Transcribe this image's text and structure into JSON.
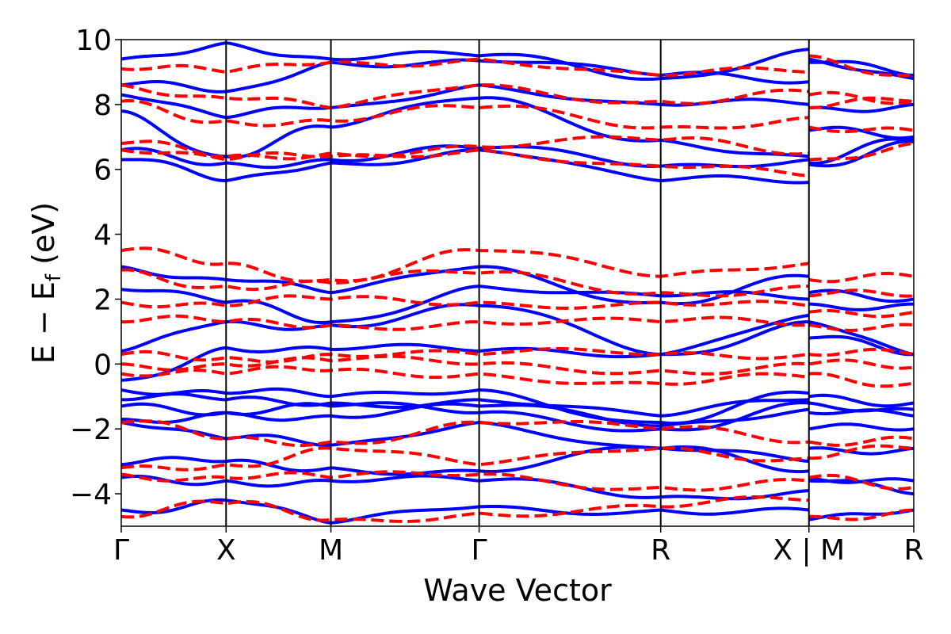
{
  "chart_data": {
    "type": "line",
    "xlabel": "Wave Vector",
    "ylabel_parts": {
      "main": "E − E",
      "sub": "f",
      "unit": " (eV)"
    },
    "ylim": [
      -5,
      10
    ],
    "yticks": [
      {
        "value": 10,
        "label": "10"
      },
      {
        "value": 8,
        "label": "8"
      },
      {
        "value": 6,
        "label": "6"
      },
      {
        "value": 4,
        "label": "4"
      },
      {
        "value": 2,
        "label": "2"
      },
      {
        "value": 0,
        "label": "0"
      },
      {
        "value": -2,
        "label": "−2"
      },
      {
        "value": -4,
        "label": "−4"
      }
    ],
    "xlim": [
      0,
      7.5
    ],
    "segments": [
      [
        0,
        6.3
      ],
      [
        6.35,
        7.5
      ]
    ],
    "kpoints": [
      {
        "x": 0,
        "label": "Γ"
      },
      {
        "x": 1,
        "label": "X"
      },
      {
        "x": 2,
        "label": "M"
      },
      {
        "x": 3.414,
        "label": "Γ"
      },
      {
        "x": 5.146,
        "label": "R"
      },
      {
        "x": 6.56,
        "label": "X | M"
      },
      {
        "x": 7.56,
        "label": "R"
      }
    ],
    "grid": false,
    "series": [
      {
        "style": "solid",
        "color": "#0000ff",
        "bands": [
          [
            6.3,
            5.65,
            6.2,
            6.6,
            5.65,
            5.6,
            6.15,
            6.85
          ],
          [
            6.6,
            6.2,
            6.3,
            6.65,
            6.1,
            6.3,
            6.2,
            6.9
          ],
          [
            7.8,
            6.4,
            7.3,
            8.2,
            6.9,
            6.4,
            7.2,
            7.0
          ],
          [
            8.3,
            7.6,
            7.9,
            8.6,
            8.0,
            8.0,
            7.9,
            8.0
          ],
          [
            8.6,
            8.4,
            9.3,
            9.35,
            8.9,
            8.7,
            9.4,
            8.8
          ],
          [
            9.4,
            9.9,
            9.4,
            9.5,
            8.8,
            9.7,
            9.3,
            8.9
          ],
          [
            3.0,
            2.6,
            2.2,
            3.0,
            1.9,
            2.7,
            2.2,
            2.0
          ],
          [
            2.3,
            1.9,
            1.3,
            2.4,
            2.1,
            2.0,
            1.85,
            1.85
          ],
          [
            0.4,
            1.3,
            1.2,
            1.8,
            0.3,
            1.5,
            1.3,
            0.3
          ],
          [
            -0.5,
            0.5,
            0.45,
            0.4,
            0.3,
            1.3,
            0.8,
            0.3
          ],
          [
            -0.8,
            -0.9,
            -1.0,
            -0.8,
            -1.8,
            -0.9,
            -1.0,
            -1.2
          ],
          [
            -1.1,
            -1.1,
            -1.2,
            -1.1,
            -1.6,
            -1.1,
            -1.2,
            -1.4
          ],
          [
            -1.3,
            -1.5,
            -1.6,
            -1.3,
            -1.9,
            -1.4,
            -1.5,
            -1.6
          ],
          [
            -1.7,
            -1.5,
            -1.3,
            -1.5,
            -2.0,
            -1.2,
            -2.0,
            -2.0
          ],
          [
            -1.8,
            -2.3,
            -2.5,
            -1.8,
            -2.6,
            -3.0,
            -2.6,
            -2.6
          ],
          [
            -3.1,
            -3.0,
            -3.2,
            -3.3,
            -2.6,
            -3.3,
            -3.5,
            -3.6
          ],
          [
            -3.5,
            -3.6,
            -3.6,
            -3.6,
            -4.1,
            -3.9,
            -3.6,
            -4.0
          ],
          [
            -4.5,
            -4.2,
            -4.9,
            -4.4,
            -4.5,
            -4.5,
            -4.8,
            -4.5
          ]
        ]
      },
      {
        "style": "dashed",
        "color": "#ff0000",
        "bands": [
          [
            6.6,
            6.3,
            6.4,
            6.6,
            6.1,
            5.8,
            6.3,
            6.8
          ],
          [
            6.8,
            6.4,
            6.5,
            6.7,
            6.9,
            6.5,
            7.3,
            7.2
          ],
          [
            8.1,
            7.5,
            7.5,
            7.9,
            7.3,
            7.6,
            7.9,
            8.1
          ],
          [
            8.6,
            8.2,
            7.9,
            8.6,
            8.1,
            8.4,
            8.3,
            8.1
          ],
          [
            9.1,
            9.0,
            9.3,
            9.4,
            8.9,
            9.0,
            9.5,
            8.9
          ],
          [
            3.5,
            3.1,
            2.6,
            3.5,
            2.7,
            3.1,
            2.6,
            2.7
          ],
          [
            2.9,
            2.4,
            2.5,
            2.8,
            2.2,
            2.4,
            2.1,
            2.1
          ],
          [
            1.9,
            1.8,
            2.0,
            1.9,
            1.9,
            1.8,
            1.6,
            1.6
          ],
          [
            1.3,
            1.3,
            1.2,
            1.3,
            1.3,
            1.2,
            1.2,
            1.2
          ],
          [
            0.3,
            0.2,
            0.3,
            0.3,
            0.3,
            0.3,
            0.3,
            0.3
          ],
          [
            0.0,
            0.0,
            0.1,
            0.0,
            -0.2,
            0.0,
            0.0,
            -0.1
          ],
          [
            -0.3,
            -0.3,
            -0.2,
            -0.3,
            -0.6,
            -0.4,
            -0.3,
            -0.6
          ],
          [
            -1.8,
            -2.3,
            -2.4,
            -1.8,
            -2.0,
            -2.4,
            -2.4,
            -2.3
          ],
          [
            -3.2,
            -3.1,
            -2.6,
            -3.1,
            -2.6,
            -2.9,
            -2.9,
            -2.6
          ],
          [
            -3.4,
            -3.5,
            -3.5,
            -3.4,
            -3.8,
            -3.6,
            -3.5,
            -3.8
          ],
          [
            -4.7,
            -4.3,
            -4.8,
            -4.6,
            -4.4,
            -4.2,
            -4.7,
            -4.5
          ]
        ]
      }
    ]
  }
}
